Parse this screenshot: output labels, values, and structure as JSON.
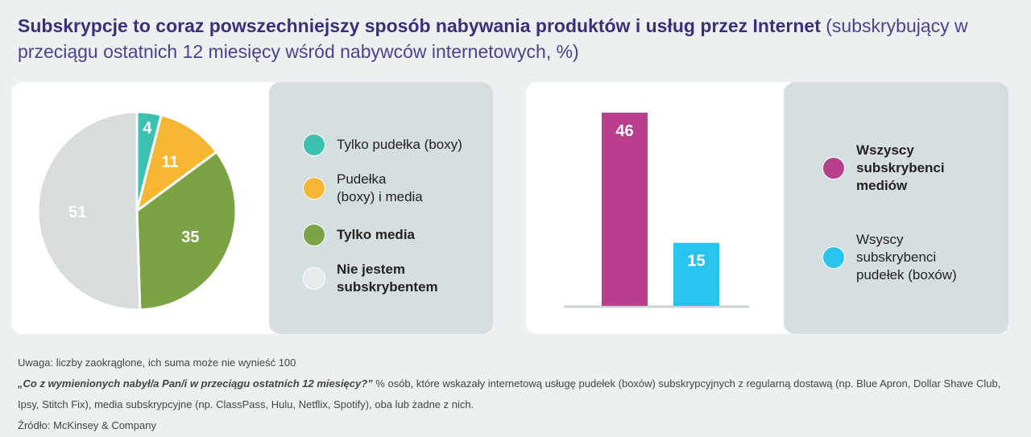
{
  "title": {
    "bold": "Subskrypcje to coraz powszechniejszy sposób nabywania produktów i usług przez Internet",
    "light": " (subskrybujący w przeciągu ostatnich 12 miesięcy wśród nabywców internetowych, %)"
  },
  "chart_data": [
    {
      "type": "pie",
      "start": "top",
      "direction": "clockwise",
      "slices": [
        {
          "label": "Tylko pudełka (boxy)",
          "value": 4,
          "color": "#3cc1b0"
        },
        {
          "label": "Pudełka (boxy) i media",
          "value": 11,
          "color": "#f5b731"
        },
        {
          "label": "Tylko media",
          "value": 35,
          "color": "#7ba344"
        },
        {
          "label": "Nie jestem subskrybentem",
          "value": 51,
          "color": "#d7dcdc"
        }
      ]
    },
    {
      "type": "bar",
      "ylim": [
        0,
        46
      ],
      "categories": [
        "Wszyscy subskrybenci mediów",
        "Wsyscy subskrybenci pudełek (boxów)"
      ],
      "values": [
        46,
        15
      ],
      "colors": [
        "#b83f8c",
        "#29c4ee"
      ]
    }
  ],
  "notes": {
    "note": "Uwaga: liczby zaokrąglone, ich suma może nie wynieść 100",
    "question": "„Co z wymienionych nabył/a Pan/i w przeciągu ostatnich 12 miesięcy?”",
    "description": " % osób, które wskazały internetową usługę pudełek (boxów) subskrypcyjnych z regularną dostawą (np. Blue Apron, Dollar Shave Club, Ipsy, Stitch Fix), media subskrypcyjne (np. ClassPass, Hulu, Netflix, Spotify), oba lub żadne z nich.",
    "source": "Źródło: McKinsey & Company"
  }
}
